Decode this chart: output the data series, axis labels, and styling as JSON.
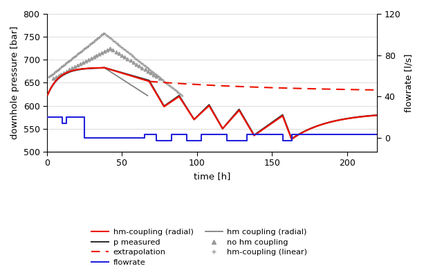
{
  "xlabel": "time [h]",
  "ylabel_left": "downhole pressure [bar]",
  "ylabel_right": "flowrate [l/s]",
  "xlim": [
    0,
    220
  ],
  "ylim_left": [
    500,
    800
  ],
  "ylim_right": [
    -13.33,
    120
  ],
  "colors": {
    "hm_coupling_radial": "#ee1100",
    "extrapolation": "#ee1100",
    "p_measured": "#333333",
    "flowrate": "#2222dd",
    "hm_coupling_linear": "#999999",
    "no_hm_coupling": "#999999",
    "hm_coupling_radial_gray": "#808080"
  }
}
